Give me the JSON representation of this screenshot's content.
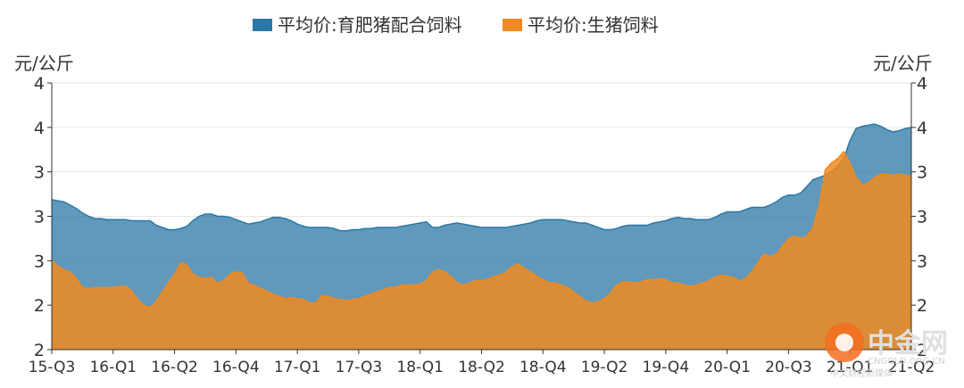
{
  "chart_data": {
    "type": "area",
    "legend_position": "top-center",
    "grid": true,
    "unit_left": "元/公斤",
    "unit_right": "元/公斤",
    "y_tick_labels": [
      "2",
      "2",
      "3",
      "3",
      "3",
      "4",
      "4"
    ],
    "ylim": [
      2.0,
      4.4
    ],
    "x_tick_labels": [
      "15-Q3",
      "16-Q1",
      "16-Q2",
      "16-Q4",
      "17-Q1",
      "17-Q3",
      "18-Q1",
      "18-Q2",
      "18-Q4",
      "19-Q2",
      "19-Q4",
      "20-Q1",
      "20-Q3",
      "21-Q1",
      "21-Q2"
    ],
    "series": [
      {
        "name": "平均价:育肥猪配合饲料",
        "color": "#2b77a6",
        "values": [
          3.35,
          3.34,
          3.33,
          3.3,
          3.27,
          3.23,
          3.2,
          3.18,
          3.18,
          3.17,
          3.17,
          3.17,
          3.17,
          3.16,
          3.16,
          3.16,
          3.16,
          3.12,
          3.1,
          3.08,
          3.08,
          3.09,
          3.11,
          3.16,
          3.2,
          3.22,
          3.22,
          3.2,
          3.2,
          3.19,
          3.17,
          3.15,
          3.13,
          3.14,
          3.15,
          3.17,
          3.19,
          3.19,
          3.18,
          3.16,
          3.13,
          3.11,
          3.1,
          3.1,
          3.1,
          3.1,
          3.09,
          3.07,
          3.07,
          3.08,
          3.08,
          3.09,
          3.09,
          3.1,
          3.1,
          3.1,
          3.1,
          3.11,
          3.12,
          3.13,
          3.14,
          3.15,
          3.1,
          3.1,
          3.12,
          3.13,
          3.14,
          3.13,
          3.12,
          3.11,
          3.1,
          3.1,
          3.1,
          3.1,
          3.1,
          3.11,
          3.12,
          3.13,
          3.14,
          3.16,
          3.17,
          3.17,
          3.17,
          3.17,
          3.16,
          3.15,
          3.14,
          3.14,
          3.12,
          3.1,
          3.08,
          3.08,
          3.09,
          3.11,
          3.12,
          3.12,
          3.12,
          3.12,
          3.14,
          3.15,
          3.16,
          3.18,
          3.19,
          3.18,
          3.18,
          3.17,
          3.17,
          3.17,
          3.19,
          3.22,
          3.24,
          3.24,
          3.24,
          3.26,
          3.28,
          3.28,
          3.28,
          3.3,
          3.33,
          3.37,
          3.39,
          3.39,
          3.41,
          3.47,
          3.53,
          3.55,
          3.57,
          3.6,
          3.65,
          3.72,
          3.88,
          3.99,
          4.01,
          4.02,
          4.03,
          4.01,
          3.98,
          3.96,
          3.97,
          3.99,
          4.0
        ]
      },
      {
        "name": "平均价:生猪饲料",
        "color": "#f0891f",
        "values": [
          2.8,
          2.75,
          2.72,
          2.7,
          2.64,
          2.56,
          2.55,
          2.56,
          2.56,
          2.56,
          2.56,
          2.57,
          2.57,
          2.53,
          2.45,
          2.4,
          2.38,
          2.43,
          2.52,
          2.6,
          2.68,
          2.78,
          2.76,
          2.68,
          2.65,
          2.64,
          2.65,
          2.6,
          2.62,
          2.68,
          2.7,
          2.69,
          2.6,
          2.58,
          2.55,
          2.53,
          2.5,
          2.48,
          2.46,
          2.47,
          2.46,
          2.45,
          2.42,
          2.42,
          2.49,
          2.48,
          2.46,
          2.45,
          2.44,
          2.45,
          2.46,
          2.48,
          2.5,
          2.52,
          2.54,
          2.56,
          2.56,
          2.58,
          2.58,
          2.58,
          2.59,
          2.62,
          2.7,
          2.72,
          2.7,
          2.66,
          2.6,
          2.58,
          2.6,
          2.62,
          2.62,
          2.63,
          2.66,
          2.67,
          2.7,
          2.75,
          2.77,
          2.73,
          2.7,
          2.66,
          2.63,
          2.6,
          2.6,
          2.58,
          2.56,
          2.52,
          2.48,
          2.44,
          2.42,
          2.43,
          2.46,
          2.51,
          2.58,
          2.61,
          2.61,
          2.6,
          2.61,
          2.63,
          2.63,
          2.64,
          2.63,
          2.6,
          2.6,
          2.58,
          2.57,
          2.58,
          2.6,
          2.62,
          2.65,
          2.67,
          2.66,
          2.65,
          2.62,
          2.64,
          2.7,
          2.78,
          2.86,
          2.84,
          2.86,
          2.93,
          3.0,
          3.02,
          3.0,
          3.02,
          3.1,
          3.3,
          3.62,
          3.68,
          3.72,
          3.78,
          3.68,
          3.55,
          3.48,
          3.5,
          3.55,
          3.58,
          3.58,
          3.57,
          3.58,
          3.57,
          3.56
        ]
      }
    ]
  },
  "watermark": {
    "brand": "中金网",
    "domain": "CNGOLD.ORG.CN",
    "tagline": "中文财经新媒体"
  }
}
